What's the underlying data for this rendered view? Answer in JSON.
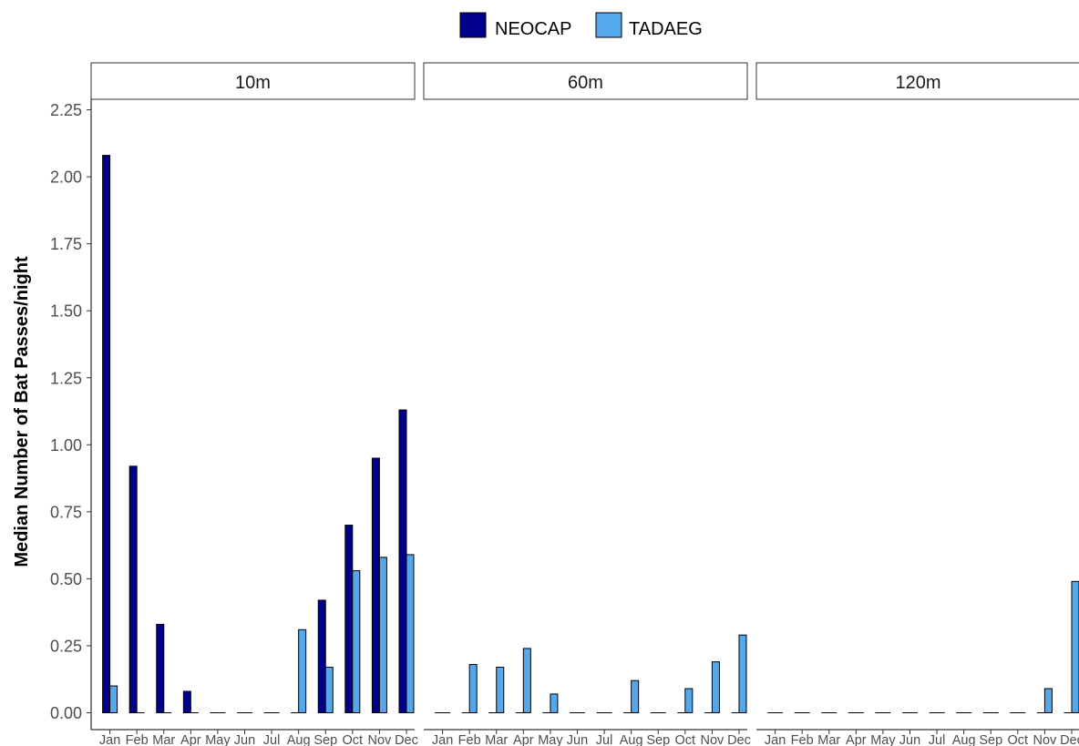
{
  "chart_data": {
    "type": "bar",
    "ylabel": "Median Number of Bat Passes/night",
    "xlabel": "",
    "ylim": [
      0,
      2.28
    ],
    "yticks": [
      "0.00",
      "0.25",
      "0.50",
      "0.75",
      "1.00",
      "1.25",
      "1.50",
      "1.75",
      "2.00",
      "2.25"
    ],
    "legend_position": "top",
    "categories": [
      "Jan",
      "Feb",
      "Mar",
      "Apr",
      "May",
      "Jun",
      "Jul",
      "Aug",
      "Sep",
      "Oct",
      "Nov",
      "Dec"
    ],
    "series_colors": {
      "NEOCAP": "#00008B",
      "TADAEG": "#56A8EC"
    },
    "panels": [
      {
        "label": "10m",
        "series": [
          {
            "name": "NEOCAP",
            "values": [
              2.08,
              0.92,
              0.33,
              0.08,
              0,
              0,
              0,
              0,
              0.42,
              0.7,
              0.95,
              1.13
            ]
          },
          {
            "name": "TADAEG",
            "values": [
              0.1,
              0,
              0,
              0,
              0,
              0,
              0,
              0.31,
              0.17,
              0.53,
              0.58,
              0.59
            ]
          }
        ]
      },
      {
        "label": "60m",
        "series": [
          {
            "name": "NEOCAP",
            "values": [
              0,
              0,
              0,
              0,
              0,
              0,
              0,
              0,
              0,
              0,
              0,
              0
            ]
          },
          {
            "name": "TADAEG",
            "values": [
              0,
              0.18,
              0.17,
              0.24,
              0.07,
              0,
              0,
              0.12,
              0,
              0.09,
              0.19,
              0.29
            ]
          }
        ]
      },
      {
        "label": "120m",
        "series": [
          {
            "name": "NEOCAP",
            "values": [
              0,
              0,
              0,
              0,
              0,
              0,
              0,
              0,
              0,
              0,
              0,
              0
            ]
          },
          {
            "name": "TADAEG",
            "values": [
              0,
              0,
              0,
              0,
              0,
              0,
              0,
              0,
              0,
              0,
              0.09,
              0.49
            ]
          }
        ]
      }
    ]
  }
}
